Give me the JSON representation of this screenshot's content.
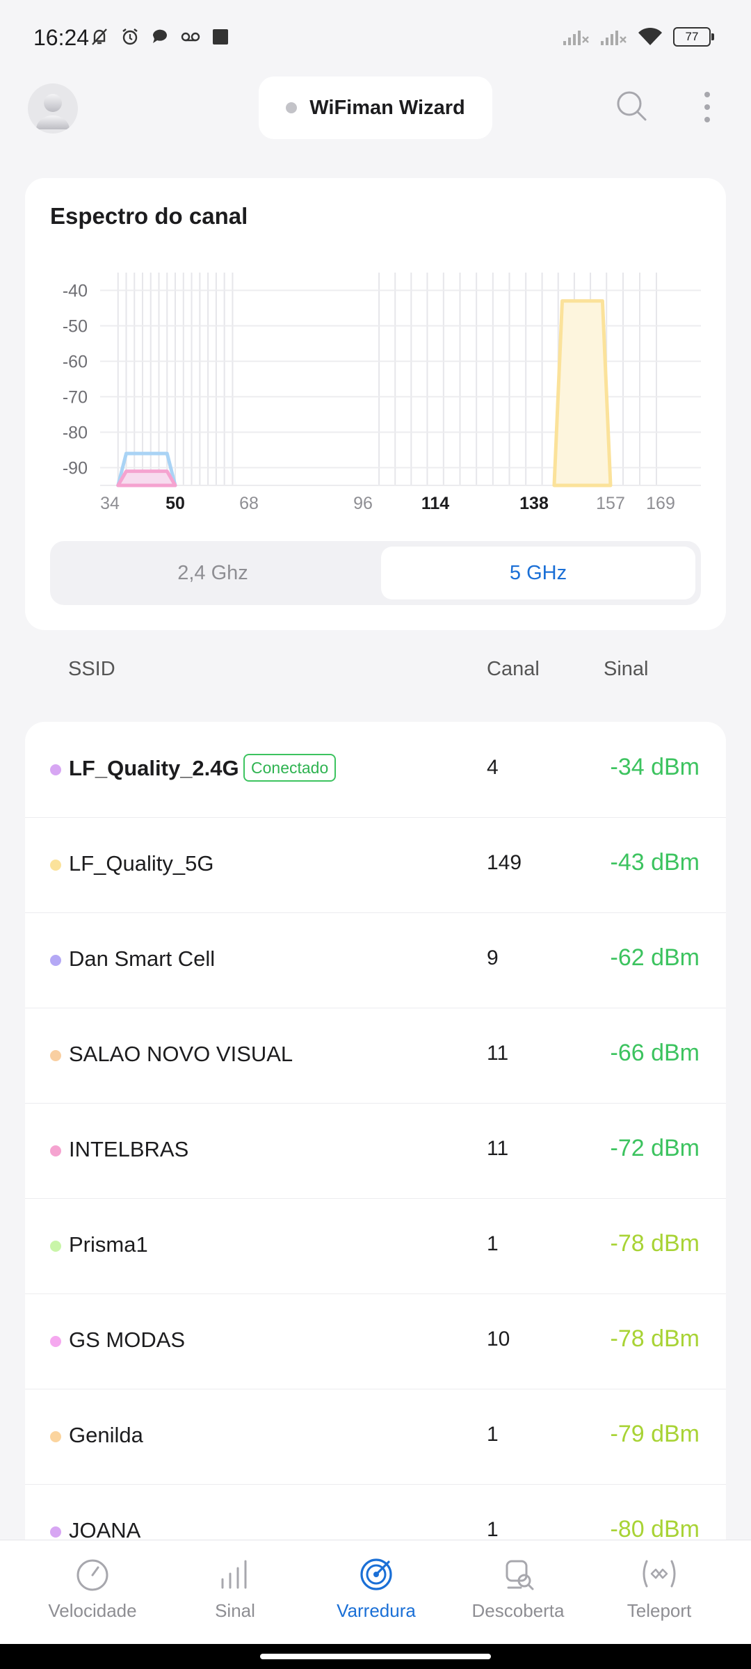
{
  "status_bar": {
    "time": "16:24",
    "battery": "77",
    "icons_left": [
      "bell-off-icon",
      "alarm-icon",
      "chat-bubble-icon",
      "voicemail-icon",
      "square-icon"
    ],
    "icons_right": [
      "signal-x-icon",
      "signal-x-icon",
      "wifi-icon",
      "battery-icon"
    ]
  },
  "header": {
    "wizard_label": "WiFiman Wizard"
  },
  "spectrum": {
    "title": "Espectro do canal",
    "band_options": [
      "2,4 Ghz",
      "5 GHz"
    ],
    "selected_band": "5 GHz"
  },
  "chart_data": {
    "type": "area",
    "y_ticks": [
      -40,
      -50,
      -60,
      -70,
      -80,
      -90
    ],
    "ylim": [
      -95,
      -35
    ],
    "x_ticks": [
      "34",
      "50",
      "68",
      "96",
      "114",
      "138",
      "157",
      "169"
    ],
    "x_ticks_bold": [
      "50",
      "114",
      "138"
    ],
    "grid": true,
    "series": [
      {
        "color": "#a9d3f5",
        "fill": "none",
        "x": [
          36,
          38,
          48,
          50
        ],
        "y": [
          -95,
          -86,
          -86,
          -95
        ]
      },
      {
        "color": "#f5a3d0",
        "fill": "#f7dcef",
        "x": [
          36,
          38,
          48,
          50
        ],
        "y": [
          -95,
          -91,
          -91,
          -95
        ]
      },
      {
        "color": "#fbe29a",
        "fill": "#fdf5dd",
        "x": [
          143,
          145,
          155,
          157
        ],
        "y": [
          -95,
          -43,
          -43,
          -95
        ]
      }
    ]
  },
  "table": {
    "col_ssid": "SSID",
    "col_channel": "Canal",
    "col_signal": "Sinal"
  },
  "networks": [
    {
      "ssid": "LF_Quality_2.4G",
      "badge": "Conectado",
      "channel": "4",
      "signal": "-34 dBm",
      "dot": "#d7a6f3",
      "sig_color": "#3cc35f",
      "bold": true
    },
    {
      "ssid": "LF_Quality_5G",
      "channel": "149",
      "signal": "-43 dBm",
      "dot": "#fbe29a",
      "sig_color": "#3cc35f"
    },
    {
      "ssid": "Dan Smart Cell",
      "channel": "9",
      "signal": "-62 dBm",
      "dot": "#b4a8f5",
      "sig_color": "#3cc35f"
    },
    {
      "ssid": "SALAO NOVO VISUAL",
      "channel": "11",
      "signal": "-66 dBm",
      "dot": "#f9cfa1",
      "sig_color": "#3cc35f"
    },
    {
      "ssid": "INTELBRAS",
      "channel": "11",
      "signal": "-72 dBm",
      "dot": "#f5a3d0",
      "sig_color": "#3cc35f"
    },
    {
      "ssid": "Prisma1",
      "channel": "1",
      "signal": "-78 dBm",
      "dot": "#c9f5a8",
      "sig_color": "#a8d335"
    },
    {
      "ssid": "GS MODAS",
      "channel": "10",
      "signal": "-78 dBm",
      "dot": "#f5a8ef",
      "sig_color": "#a8d335"
    },
    {
      "ssid": "Genilda",
      "channel": "1",
      "signal": "-79 dBm",
      "dot": "#fbd49e",
      "sig_color": "#a8d335"
    },
    {
      "ssid": "JOANA",
      "channel": "1",
      "signal": "-80 dBm",
      "dot": "#d7a6f3",
      "sig_color": "#a8d335"
    }
  ],
  "bottom_nav": {
    "items": [
      {
        "label": "Velocidade",
        "icon": "speedometer-icon"
      },
      {
        "label": "Sinal",
        "icon": "signal-bars-icon"
      },
      {
        "label": "Varredura",
        "icon": "radar-icon",
        "active": true
      },
      {
        "label": "Descoberta",
        "icon": "device-discovery-icon"
      },
      {
        "label": "Teleport",
        "icon": "teleport-icon"
      }
    ]
  }
}
